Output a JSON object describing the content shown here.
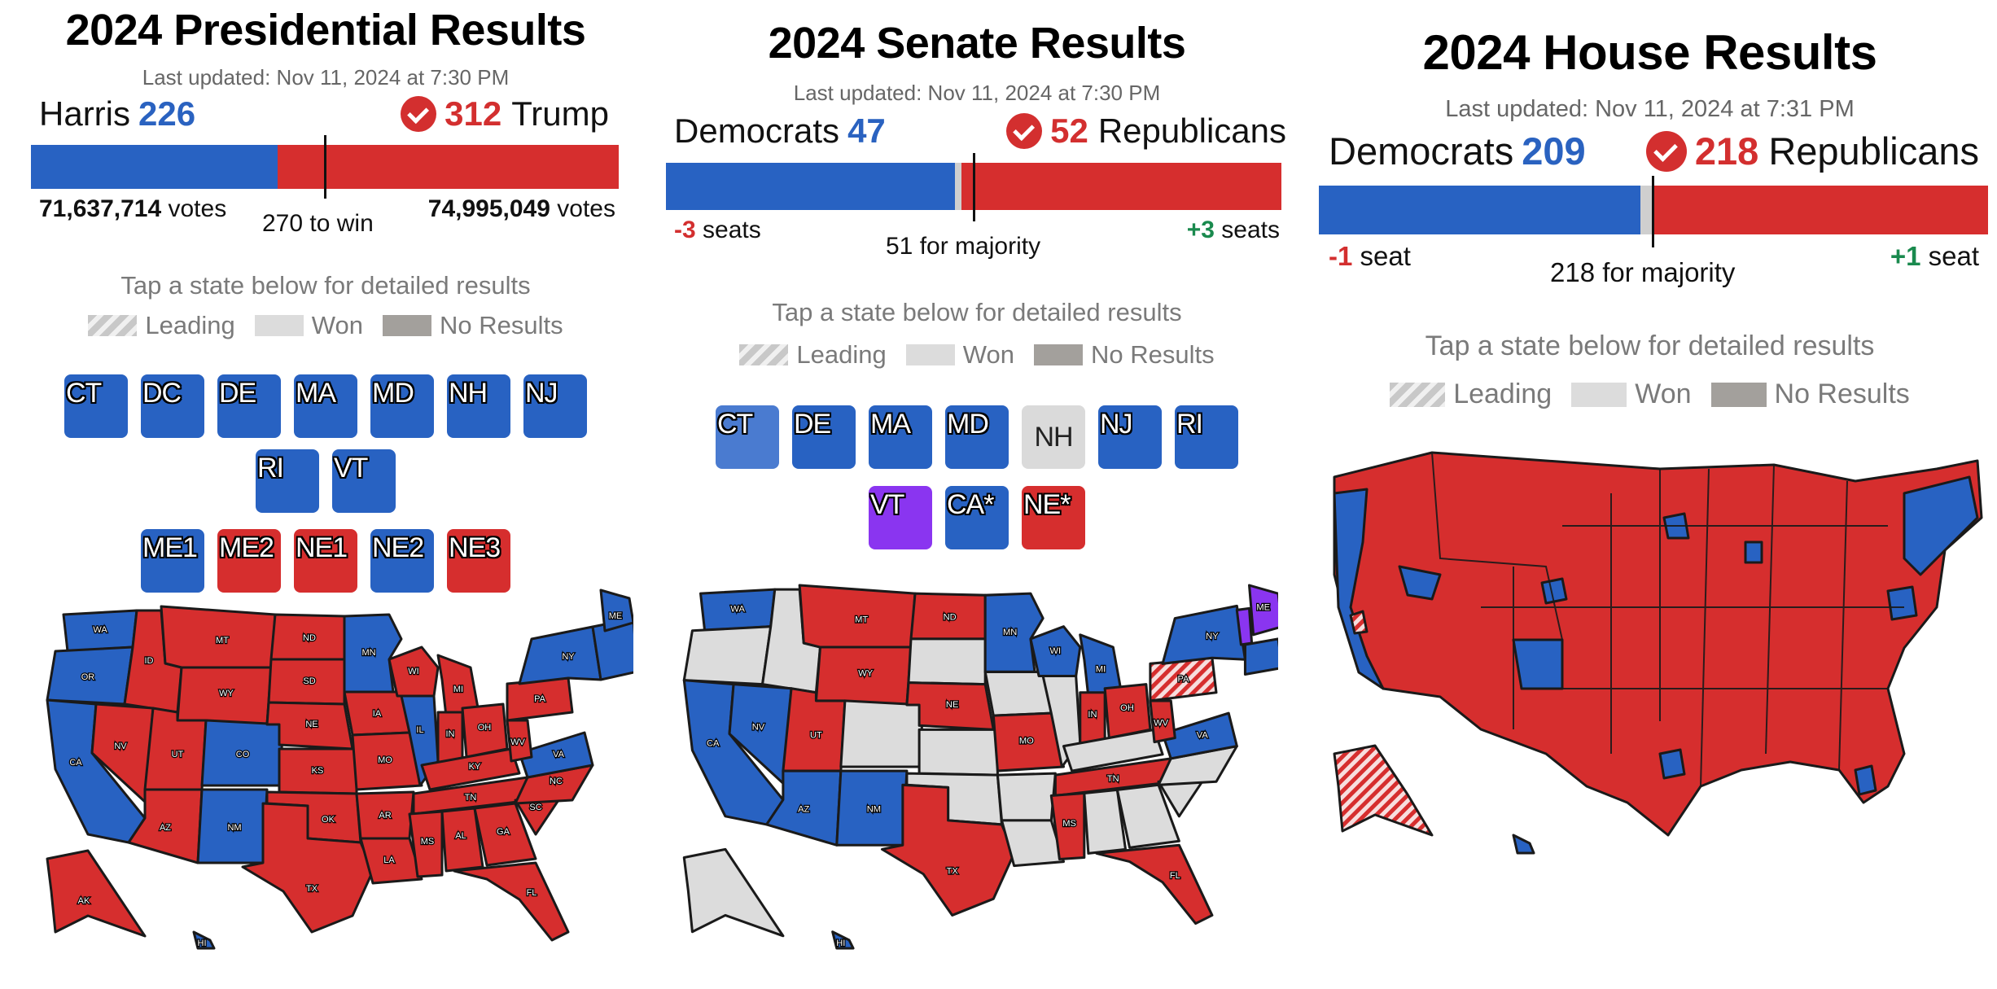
{
  "presidential": {
    "title": "2024 Presidential Results",
    "updated": "Last updated: Nov 11, 2024 at 7:30 PM",
    "left_name": "Harris",
    "left_count": "226",
    "right_count": "312",
    "right_name": "Trump",
    "left_votes": "71,637,714",
    "right_votes": "74,995,049",
    "votes_suffix": "votes",
    "threshold": "270 to win",
    "tap": "Tap a state below for detailed results",
    "legend": [
      "Leading",
      "Won",
      "No Results"
    ],
    "tiles_row1": [
      {
        "label": "CT",
        "color": "blue"
      },
      {
        "label": "DC",
        "color": "blue"
      },
      {
        "label": "DE",
        "color": "blue"
      },
      {
        "label": "MA",
        "color": "blue"
      },
      {
        "label": "MD",
        "color": "blue"
      },
      {
        "label": "NH",
        "color": "blue"
      },
      {
        "label": "NJ",
        "color": "blue"
      }
    ],
    "tiles_row2": [
      {
        "label": "RI",
        "color": "blue"
      },
      {
        "label": "VT",
        "color": "blue"
      }
    ],
    "tiles_row3": [
      {
        "label": "ME1",
        "color": "blue"
      },
      {
        "label": "ME2",
        "color": "red"
      },
      {
        "label": "NE1",
        "color": "red"
      },
      {
        "label": "NE2",
        "color": "blue"
      },
      {
        "label": "NE3",
        "color": "red"
      }
    ],
    "bar_share": {
      "dem": 0.42,
      "rep": 0.58
    }
  },
  "senate": {
    "title": "2024 Senate Results",
    "updated": "Last updated: Nov 11, 2024 at 7:30 PM",
    "left_name": "Democrats",
    "left_count": "47",
    "right_count": "52",
    "right_name": "Republicans",
    "left_change": "-3",
    "right_change": "+3",
    "change_suffix": "seats",
    "threshold": "51 for majority",
    "tap": "Tap a state below for detailed results",
    "legend": [
      "Leading",
      "Won",
      "No Results"
    ],
    "tiles_row1": [
      {
        "label": "CT",
        "color": "lightblue"
      },
      {
        "label": "DE",
        "color": "blue"
      },
      {
        "label": "MA",
        "color": "blue"
      },
      {
        "label": "MD",
        "color": "blue"
      },
      {
        "label": "NH",
        "color": "gray"
      },
      {
        "label": "NJ",
        "color": "blue"
      },
      {
        "label": "RI",
        "color": "blue"
      }
    ],
    "tiles_row2": [
      {
        "label": "VT",
        "color": "purple"
      },
      {
        "label": "CA*",
        "color": "blue"
      },
      {
        "label": "NE*",
        "color": "red"
      }
    ],
    "bar_share": {
      "dem": 0.47,
      "ind": 0.01,
      "rep": 0.52
    }
  },
  "house": {
    "title": "2024 House Results",
    "updated": "Last updated: Nov 11, 2024 at 7:31 PM",
    "left_name": "Democrats",
    "left_count": "209",
    "right_count": "218",
    "right_name": "Republicans",
    "left_change": "-1",
    "right_change": "+1",
    "change_suffix": "seat",
    "threshold": "218 for majority",
    "tap": "Tap a state below for detailed results",
    "legend": [
      "Leading",
      "Won",
      "No Results"
    ],
    "bar_share": {
      "dem": 0.48,
      "other": 0.02,
      "rep": 0.5
    }
  },
  "map_labels": {
    "pres": [
      "WA",
      "OR",
      "CA",
      "ID",
      "NV",
      "MT",
      "WY",
      "UT",
      "AZ",
      "CO",
      "NM",
      "ND",
      "SD",
      "NE",
      "KS",
      "OK",
      "TX",
      "MN",
      "IA",
      "MO",
      "AR",
      "LA",
      "WI",
      "IL",
      "MI",
      "IN",
      "OH",
      "KY",
      "TN",
      "MS",
      "AL",
      "GA",
      "FL",
      "SC",
      "NC",
      "VA",
      "WV",
      "PA",
      "NY",
      "ME",
      "AK",
      "HI"
    ],
    "senate": [
      "WA",
      "CA",
      "NV",
      "MT",
      "WY",
      "UT",
      "AZ",
      "NM",
      "ND",
      "NE",
      "TX",
      "MN",
      "WI",
      "MI",
      "MO",
      "IN",
      "OH",
      "WV",
      "PA",
      "NY",
      "VA",
      "TN",
      "MS",
      "FL",
      "ME",
      "HI"
    ]
  },
  "colors": {
    "dem": "#2862c2",
    "rep": "#d62e2e",
    "won": "#dcdcdc",
    "none": "#a3a09c",
    "ind": "#8a35f0",
    "gain": "#1a8a4e"
  }
}
